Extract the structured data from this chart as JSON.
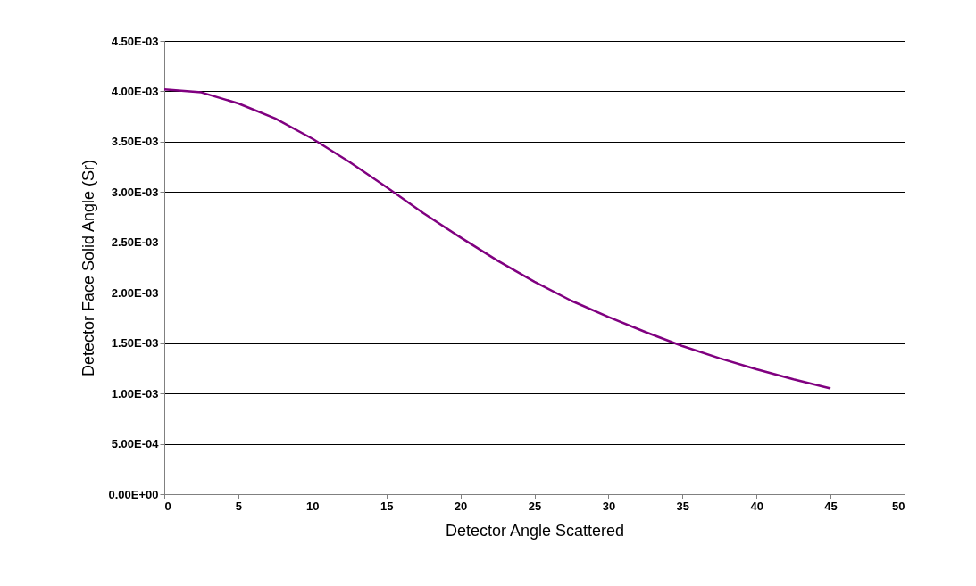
{
  "chart_data": {
    "type": "line",
    "xlabel": "Detector Angle Scattered",
    "ylabel": "Detector Face Solid Angle (Sr)",
    "x": [
      0,
      2.5,
      5,
      7.5,
      10,
      12.5,
      15,
      17.5,
      20,
      22.5,
      25,
      27.5,
      30,
      32.5,
      35,
      37.5,
      40,
      42.5,
      45
    ],
    "series": [
      {
        "color": "#800080",
        "values": [
          0.00402,
          0.00399,
          0.00388,
          0.00373,
          0.00353,
          0.0033,
          0.00305,
          0.00279,
          0.00255,
          0.00232,
          0.00211,
          0.00192,
          0.00176,
          0.00161,
          0.00147,
          0.00135,
          0.00124,
          0.00114,
          0.00105
        ]
      }
    ],
    "xlim": [
      0,
      50
    ],
    "xticks": [
      0,
      5,
      10,
      15,
      20,
      25,
      30,
      35,
      40,
      45,
      50
    ],
    "ylim": [
      0,
      0.0045
    ],
    "yticks": [
      {
        "value": 0,
        "label": "0.00E+00"
      },
      {
        "value": 0.0005,
        "label": "5.00E-04"
      },
      {
        "value": 0.001,
        "label": "1.00E-03"
      },
      {
        "value": 0.0015,
        "label": "1.50E-03"
      },
      {
        "value": 0.002,
        "label": "2.00E-03"
      },
      {
        "value": 0.0025,
        "label": "2.50E-03"
      },
      {
        "value": 0.003,
        "label": "3.00E-03"
      },
      {
        "value": 0.0035,
        "label": "3.50E-03"
      },
      {
        "value": 0.004,
        "label": "4.00E-03"
      },
      {
        "value": 0.0045,
        "label": "4.50E-03"
      }
    ],
    "grid": "y",
    "marker": "none",
    "line_style": "solid"
  }
}
